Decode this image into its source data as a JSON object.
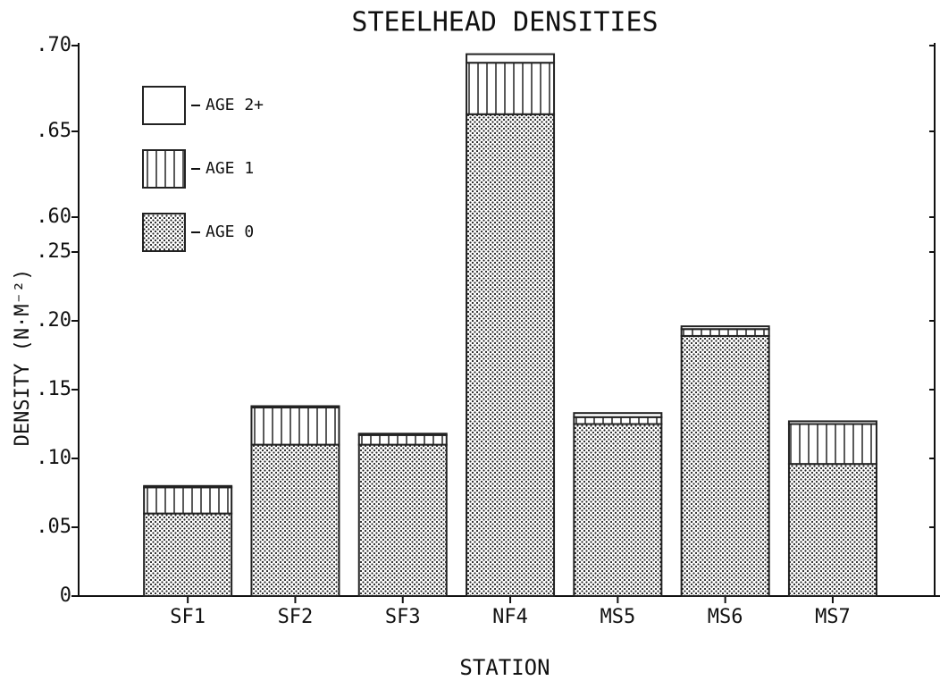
{
  "chart_data": {
    "type": "bar",
    "stacked": true,
    "title": "STEELHEAD DENSITIES",
    "x_label": "STATION",
    "y_label": "DENSITY (N·M⁻²)",
    "categories": [
      "SF1",
      "SF2",
      "SF3",
      "NF4",
      "MS5",
      "MS6",
      "MS7"
    ],
    "series": [
      {
        "name": "AGE 0",
        "pattern": "dots",
        "color": "#222222",
        "values": [
          0.06,
          0.11,
          0.11,
          0.66,
          0.125,
          0.189,
          0.096
        ]
      },
      {
        "name": "AGE 1",
        "pattern": "vertical-lines",
        "color": "#222222",
        "values": [
          0.019,
          0.027,
          0.007,
          0.03,
          0.005,
          0.005,
          0.029
        ]
      },
      {
        "name": "AGE 2+",
        "pattern": "none",
        "color": "#222222",
        "values": [
          0.001,
          0.001,
          0.001,
          0.005,
          0.003,
          0.002,
          0.002
        ]
      }
    ],
    "ylim": [
      0,
      0.7
    ],
    "axis_break": [
      0.25,
      0.6
    ],
    "yticks": [
      0,
      {
        "value": 0.05,
        "label": ".05"
      },
      {
        "value": 0.1,
        "label": ".10"
      },
      {
        "value": 0.15,
        "label": ".15"
      },
      {
        "value": 0.2,
        "label": ".20"
      },
      {
        "value": 0.25,
        "label": ".25"
      },
      {
        "value": 0.6,
        "label": ".60"
      },
      {
        "value": 0.65,
        "label": ".65"
      },
      {
        "value": 0.7,
        "label": ".70"
      }
    ],
    "legend": "upper left"
  }
}
